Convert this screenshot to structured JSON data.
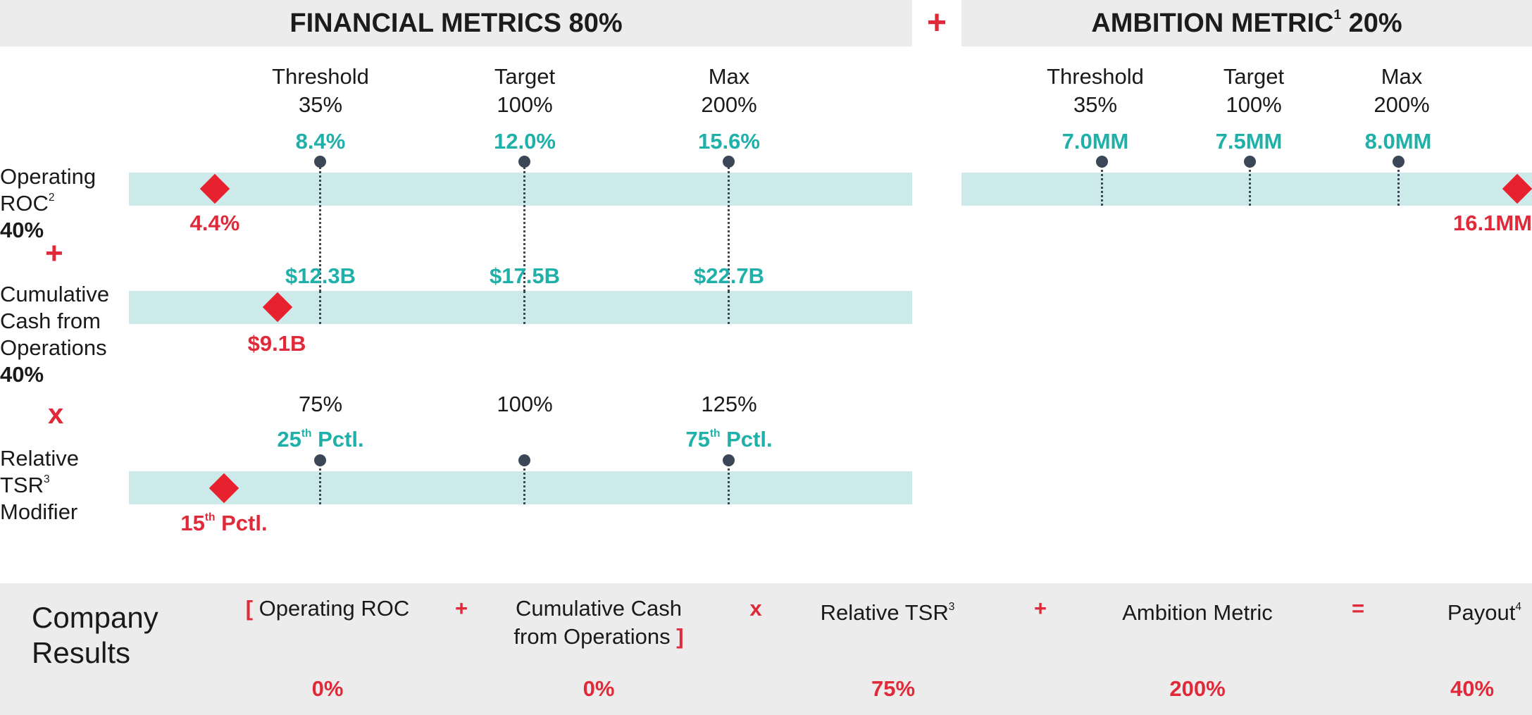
{
  "headers": {
    "financial": "FINANCIAL METRICS 80%",
    "plus": "+",
    "ambition_title": "AMBITION METRIC",
    "ambition_sup": "1",
    "ambition_pct": " 20%"
  },
  "levels": {
    "threshold": "Threshold",
    "threshold_pct": "35%",
    "target": "Target",
    "target_pct": "100%",
    "max": "Max",
    "max_pct": "200%"
  },
  "ambition_levels": {
    "threshold": "Threshold",
    "threshold_pct": "35%",
    "target": "Target",
    "target_pct": "100%",
    "max": "Max",
    "max_pct": "200%"
  },
  "roc": {
    "label_line1": "Operating",
    "label_line2": "ROC",
    "label_sup": "2",
    "weight": "40%",
    "threshold_value": "8.4%",
    "target_value": "12.0%",
    "max_value": "15.6%",
    "actual": "4.4%"
  },
  "cash": {
    "label_line1": "Cumulative",
    "label_line2": "Cash from",
    "label_line3": "Operations",
    "weight": "40%",
    "threshold_value": "$12.3B",
    "target_value": "$17.5B",
    "max_value": "$22.7B",
    "actual": "$9.1B"
  },
  "tsr": {
    "label_line1": "Relative",
    "label_line2": "TSR",
    "label_sup": "3",
    "label_line3": "Modifier",
    "low_pct": "75%",
    "mid_pct": "100%",
    "high_pct": "125%",
    "low_value": "25",
    "low_value_sup": "th",
    "low_value_suffix": " Pctl.",
    "high_value": "75",
    "high_value_sup": "th",
    "high_value_suffix": " Pctl.",
    "actual": "15",
    "actual_sup": "th",
    "actual_suffix": " Pctl."
  },
  "ambition": {
    "threshold_value": "7.0MM",
    "target_value": "7.5MM",
    "max_value": "8.0MM",
    "actual": "16.1MM"
  },
  "operators": {
    "plus": "+",
    "times": "x"
  },
  "results": {
    "title_line1": "Company",
    "title_line2": "Results",
    "bracket_open": "[",
    "bracket_close": "]",
    "roc_label": "Operating ROC",
    "cash_label_line1": "Cumulative Cash",
    "cash_label_line2": "from Operations",
    "tsr_label": "Relative TSR",
    "tsr_sup": "3",
    "ambition_label": "Ambition Metric",
    "payout_label": "Payout",
    "payout_sup": "4",
    "op_plus1": "+",
    "op_times": "x",
    "op_plus2": "+",
    "op_equals": "=",
    "roc_pct": "0%",
    "cash_pct": "0%",
    "tsr_pct": "75%",
    "ambition_pct": "200%",
    "payout_pct": "40%"
  },
  "colors": {
    "teal": "#1fb0aa",
    "red": "#e02a3a",
    "track": "#cdeaea",
    "header_bg": "#ececec",
    "dot": "#3b4656"
  }
}
